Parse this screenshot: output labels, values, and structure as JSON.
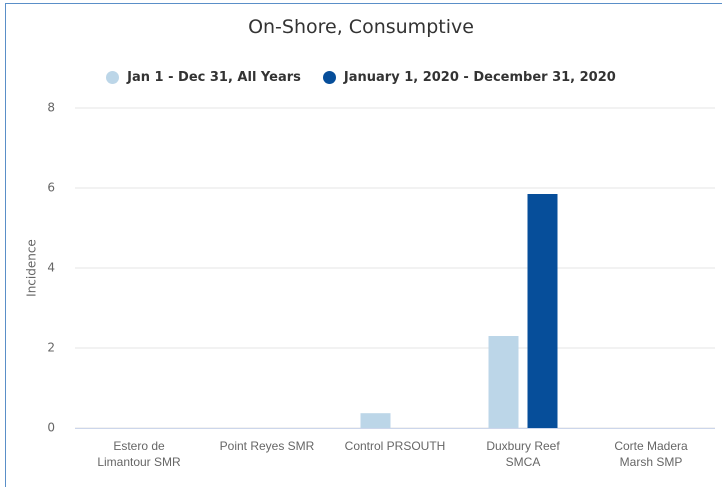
{
  "chart_data": {
    "type": "bar",
    "title": "On-Shore, Consumptive",
    "categories": [
      "Estero de Limantour SMR",
      "Point Reyes SMR",
      "Control PRSOUTH",
      "Duxbury Reef SMCA",
      "Corte Madera Marsh SMP"
    ],
    "series": [
      {
        "name": "Jan 1 - Dec 31, All Years",
        "color": "#bcd6e8",
        "values": [
          0,
          0,
          0.37,
          2.3,
          0
        ]
      },
      {
        "name": "January 1, 2020 - December 31, 2020",
        "color": "#064e9a",
        "values": [
          0,
          0,
          0,
          5.85,
          0
        ]
      }
    ],
    "y_label": "Incidence",
    "ylim": [
      0,
      8
    ],
    "yticks": [
      0,
      2,
      4,
      6,
      8
    ],
    "grid": true
  }
}
